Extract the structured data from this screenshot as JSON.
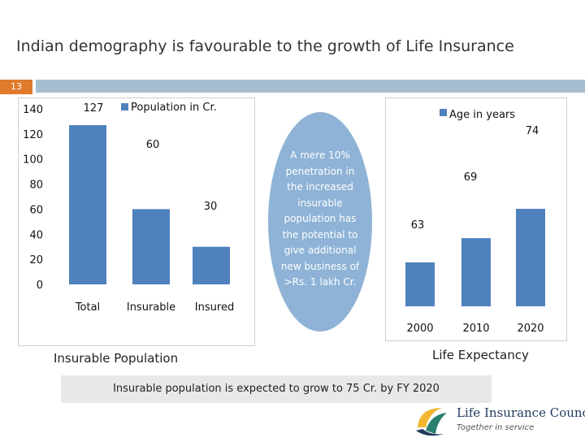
{
  "slide": {
    "title": "Indian demography is favourable to the growth of Life Insurance",
    "number": "13"
  },
  "colors": {
    "accent": "#e07a2d",
    "bar": "#4f81bd",
    "header_bar": "#a5bfd0",
    "oval": "#8eb3d6"
  },
  "chart_data": [
    {
      "type": "bar",
      "categories": [
        "Total",
        "Insurable",
        "Insured"
      ],
      "series": [
        {
          "name": "Population in Cr.",
          "values": [
            127,
            60,
            30
          ]
        }
      ],
      "data_labels": [
        "127",
        "60",
        "30"
      ],
      "ylim": [
        0,
        140
      ],
      "y_ticks": [
        "0",
        "20",
        "40",
        "60",
        "80",
        "100",
        "120",
        "140"
      ],
      "legend": "top",
      "caption": "Insurable Population"
    },
    {
      "type": "bar",
      "categories": [
        "2000",
        "2010",
        "2020"
      ],
      "series": [
        {
          "name": "Age in years",
          "values": [
            63,
            69,
            74
          ]
        }
      ],
      "data_labels": [
        "63",
        "69",
        "74"
      ],
      "legend": "top-right",
      "caption": "Life Expectancy"
    }
  ],
  "callout": {
    "lines": [
      "A mere 10%",
      "penetration in",
      "the increased",
      "insurable",
      "population has",
      "the potential to",
      "give additional",
      "new business of",
      ">Rs. 1 lakh  Cr."
    ]
  },
  "footer": {
    "text": "Insurable population is expected to grow to 75 Cr. by FY 2020"
  },
  "logo": {
    "name": "Life Insurance Council",
    "tagline": "Together in service"
  }
}
